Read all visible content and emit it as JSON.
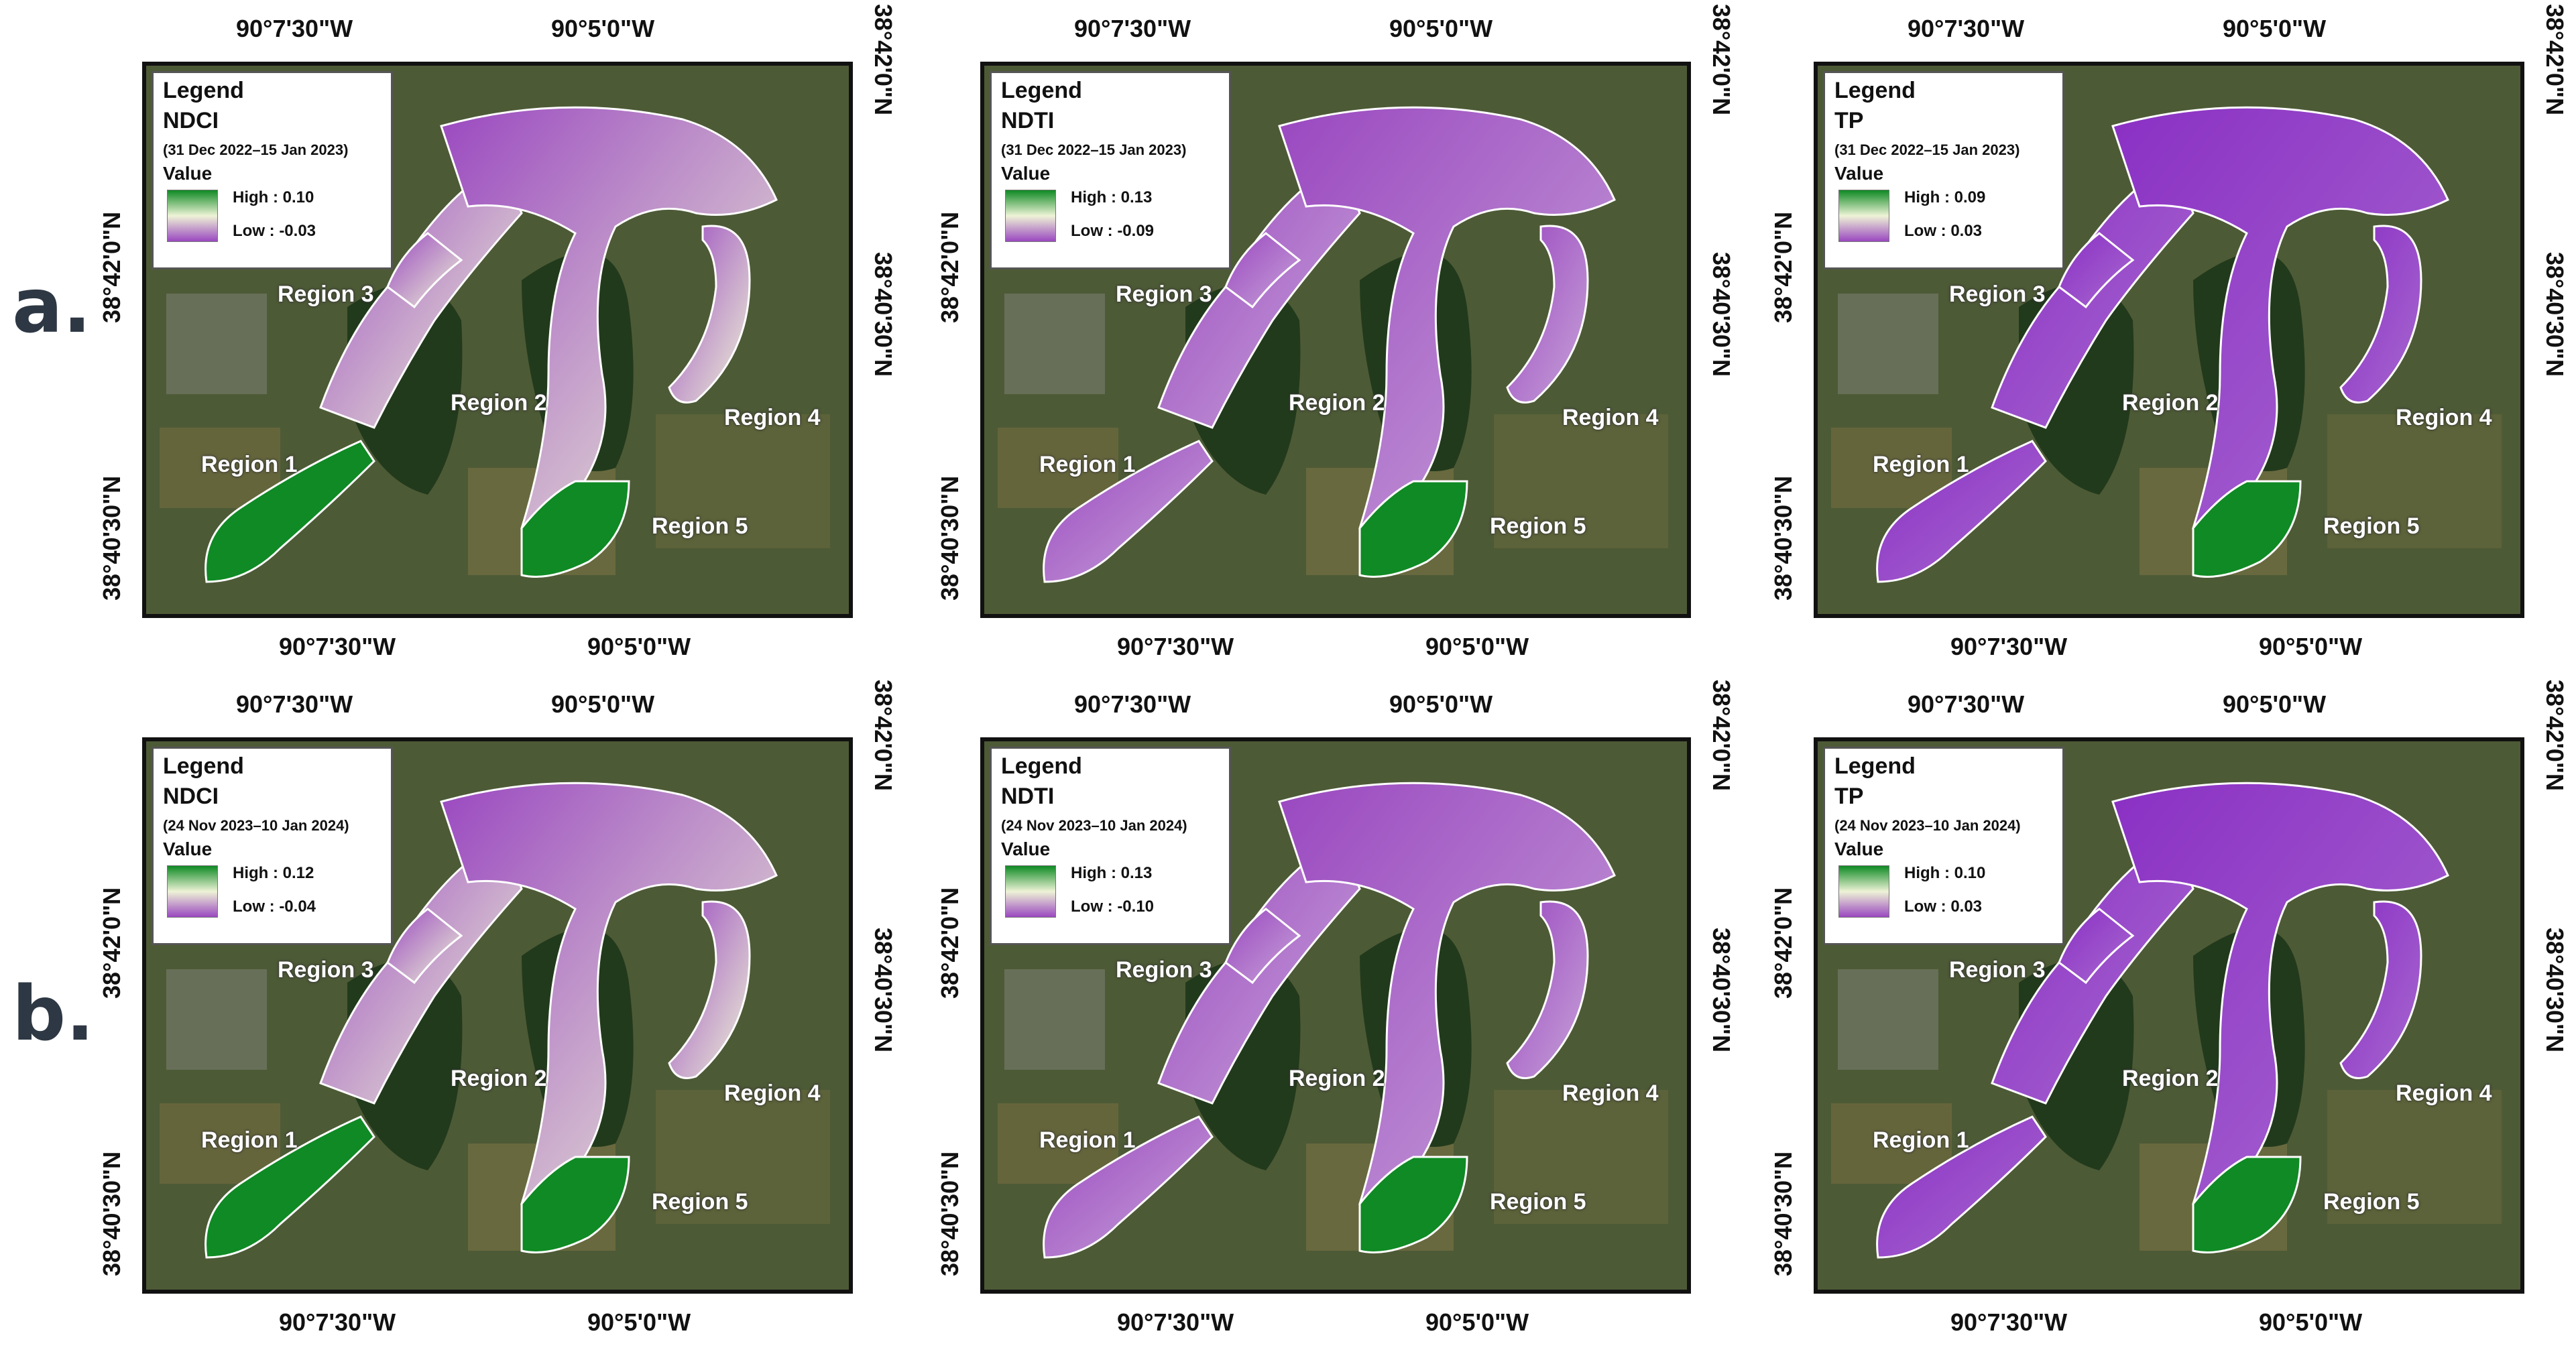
{
  "rows": [
    {
      "label": "a.",
      "panels": [
        {
          "legend_title": "Legend",
          "index": "NDCI",
          "period": "(31 Dec 2022–15 Jan 2023)",
          "value_label": "Value",
          "high": "High : 0.10",
          "low": "Low : -0.03"
        },
        {
          "legend_title": "Legend",
          "index": "NDTI",
          "period": "(31 Dec 2022–15 Jan 2023)",
          "value_label": "Value",
          "high": "High : 0.13",
          "low": "Low : -0.09"
        },
        {
          "legend_title": "Legend",
          "index": "TP",
          "period": "(31 Dec 2022–15 Jan 2023)",
          "value_label": "Value",
          "high": "High : 0.09",
          "low": "Low : 0.03"
        }
      ]
    },
    {
      "label": "b.",
      "panels": [
        {
          "legend_title": "Legend",
          "index": "NDCI",
          "period": "(24 Nov 2023–10 Jan 2024)",
          "value_label": "Value",
          "high": "High : 0.12",
          "low": "Low : -0.04"
        },
        {
          "legend_title": "Legend",
          "index": "NDTI",
          "period": "(24 Nov 2023–10 Jan 2024)",
          "value_label": "Value",
          "high": "High : 0.13",
          "low": "Low : -0.10"
        },
        {
          "legend_title": "Legend",
          "index": "TP",
          "period": "(24 Nov 2023–10 Jan 2024)",
          "value_label": "Value",
          "high": "High : 0.10",
          "low": "Low : 0.03"
        }
      ]
    }
  ],
  "ticks": {
    "lon_left": "90°7'30\"W",
    "lon_right": "90°5'0\"W",
    "lat_upper": "38°42'0\"N",
    "lat_lower": "38°40'30\"N"
  },
  "regions": [
    "Region 1",
    "Region 2",
    "Region 3",
    "Region 4",
    "Region 5"
  ],
  "colors": {
    "high": "#0f8a24",
    "mid": "#eef3d6",
    "low": "#9a48c0",
    "land": "#4d5a36",
    "forest": "#223a1c",
    "boundary": "#ffffff"
  }
}
